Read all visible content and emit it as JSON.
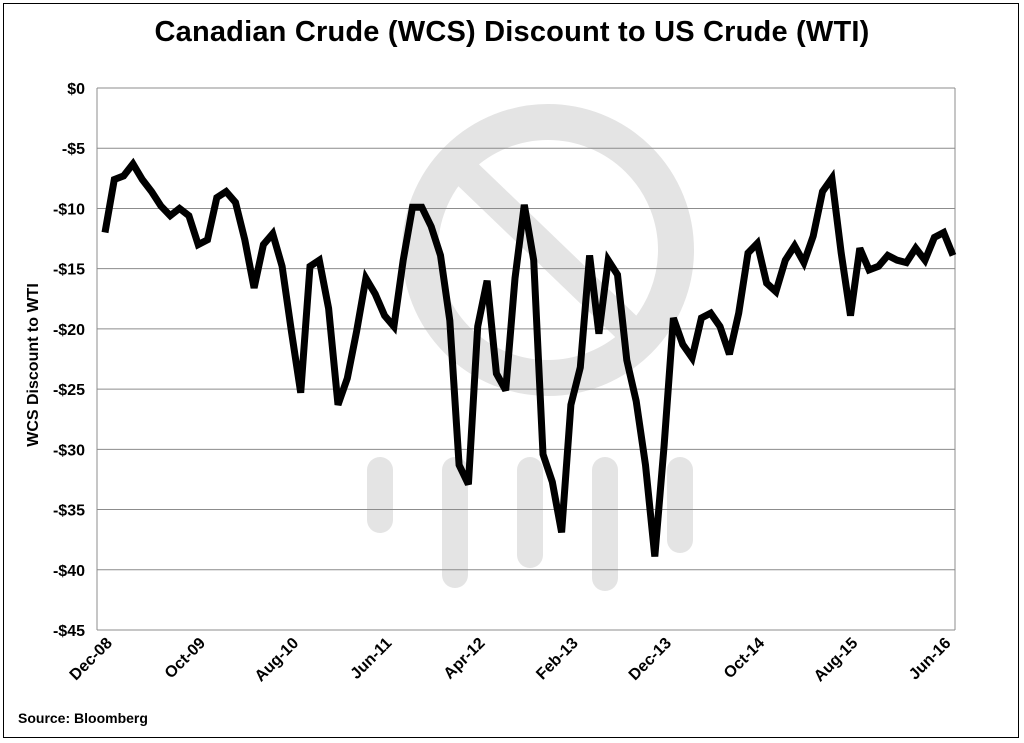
{
  "chart_data": {
    "type": "line",
    "title": "Canadian Crude (WCS) Discount to US Crude (WTI)",
    "xlabel": "",
    "ylabel": "WCS Discount to WTI",
    "source": "Source: Bloomberg",
    "ylim": [
      -45,
      0
    ],
    "yticks": [
      0,
      -5,
      -10,
      -15,
      -20,
      -25,
      -30,
      -35,
      -40,
      -45
    ],
    "ytick_labels": [
      "$0",
      "-$5",
      "-$10",
      "-$15",
      "-$20",
      "-$25",
      "-$30",
      "-$35",
      "-$40",
      "-$45"
    ],
    "x_tick_labels": [
      "Dec-08",
      "Oct-09",
      "Aug-10",
      "Jun-11",
      "Apr-12",
      "Feb-13",
      "Dec-13",
      "Oct-14",
      "Aug-15",
      "Jun-16"
    ],
    "x_tick_index": [
      0,
      10,
      20,
      30,
      40,
      50,
      60,
      70,
      80,
      90
    ],
    "x_start": "Dec-08",
    "x_end": "Jun-16",
    "grid": true,
    "series": [
      {
        "values": [
          -12.0,
          -7.6,
          -7.3,
          -6.3,
          -7.6,
          -8.6,
          -9.8,
          -10.6,
          -10.0,
          -10.6,
          -13.0,
          -12.6,
          -9.1,
          -8.6,
          -9.5,
          -12.6,
          -16.6,
          -13.0,
          -12.1,
          -14.8,
          -20.2,
          -25.3,
          -14.8,
          -14.3,
          -18.3,
          -26.3,
          -24.1,
          -20.2,
          -15.8,
          -17.1,
          -18.9,
          -19.8,
          -14.3,
          -9.9,
          -9.9,
          -11.5,
          -13.9,
          -19.3,
          -31.3,
          -32.9,
          -19.8,
          -16.0,
          -23.7,
          -25.1,
          -15.8,
          -9.7,
          -14.3,
          -30.4,
          -32.7,
          -36.9,
          -26.3,
          -23.2,
          -13.9,
          -20.4,
          -14.3,
          -15.5,
          -22.6,
          -26.0,
          -31.3,
          -38.9,
          -29.7,
          -19.1,
          -21.3,
          -22.4,
          -19.1,
          -18.7,
          -19.8,
          -22.1,
          -18.7,
          -13.7,
          -12.9,
          -16.2,
          -16.9,
          -14.3,
          -13.1,
          -14.5,
          -12.3,
          -8.6,
          -7.5,
          -13.7,
          -18.9,
          -13.3,
          -15.1,
          -14.8,
          -13.9,
          -14.3,
          -14.5,
          -13.3,
          -14.3,
          -12.4,
          -12.0,
          -13.9
        ]
      }
    ]
  }
}
